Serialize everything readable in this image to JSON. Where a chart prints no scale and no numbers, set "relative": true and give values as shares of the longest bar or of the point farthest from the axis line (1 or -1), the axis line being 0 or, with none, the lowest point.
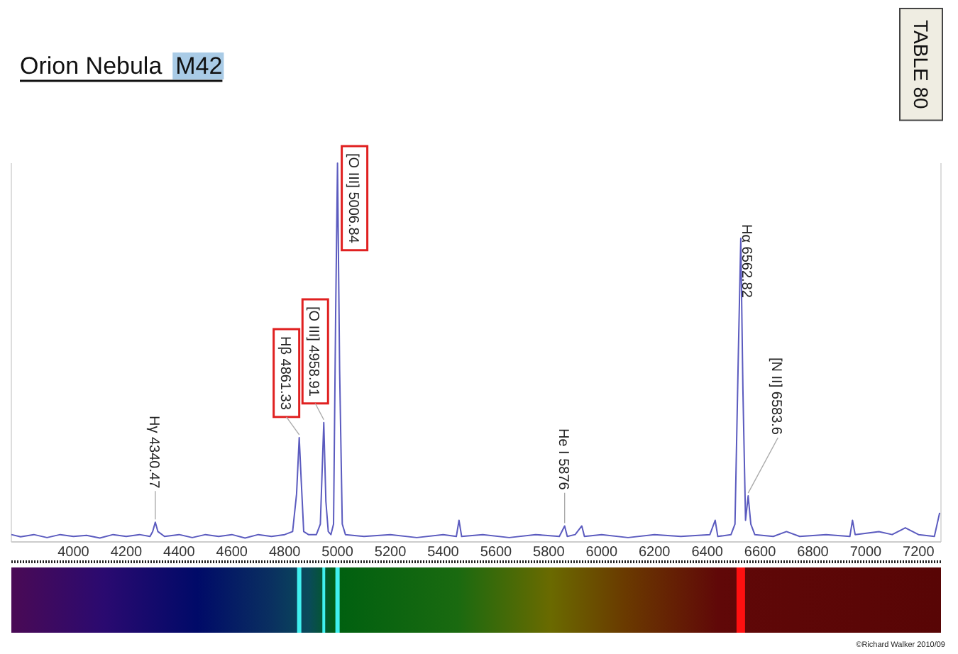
{
  "chart_data": {
    "type": "line",
    "title": "Orion Nebula  M42",
    "relative": true,
    "xlim": [
      3765,
      7285
    ],
    "xticks": [
      4000,
      4200,
      4400,
      4600,
      4800,
      5000,
      5200,
      5400,
      5600,
      5800,
      6000,
      6200,
      6400,
      6600,
      6800,
      7000,
      7200
    ],
    "marker": "none",
    "line_style": "solid",
    "series": [
      {
        "color": "#5b5bbf",
        "x": [
          3765,
          3800,
          3850,
          3900,
          3950,
          4000,
          4050,
          4100,
          4150,
          4200,
          4250,
          4290,
          4300,
          4310,
          4320,
          4345,
          4400,
          4450,
          4500,
          4550,
          4600,
          4650,
          4700,
          4750,
          4800,
          4830,
          4845,
          4855,
          4863,
          4872,
          4890,
          4920,
          4935,
          4948,
          4956,
          4965,
          4975,
          4985,
          4993,
          5000,
          5008,
          5018,
          5030,
          5100,
          5200,
          5300,
          5400,
          5450,
          5460,
          5470,
          5550,
          5650,
          5750,
          5840,
          5860,
          5870,
          5900,
          5925,
          5935,
          6000,
          6100,
          6200,
          6300,
          6410,
          6430,
          6440,
          6490,
          6505,
          6518,
          6527,
          6535,
          6545,
          6555,
          6565,
          6580,
          6650,
          6700,
          6750,
          6850,
          6940,
          6950,
          6960,
          7050,
          7100,
          7150,
          7200,
          7260,
          7280
        ],
        "values": [
          0.012,
          0.006,
          0.012,
          0.004,
          0.012,
          0.007,
          0.01,
          0.003,
          0.012,
          0.007,
          0.012,
          0.007,
          0.02,
          0.045,
          0.02,
          0.007,
          0.012,
          0.004,
          0.012,
          0.007,
          0.012,
          0.003,
          0.012,
          0.007,
          0.012,
          0.02,
          0.12,
          0.27,
          0.15,
          0.02,
          0.012,
          0.012,
          0.04,
          0.31,
          0.1,
          0.02,
          0.012,
          0.04,
          0.6,
          1.0,
          0.45,
          0.04,
          0.012,
          0.007,
          0.012,
          0.004,
          0.012,
          0.007,
          0.05,
          0.007,
          0.012,
          0.004,
          0.012,
          0.007,
          0.035,
          0.007,
          0.012,
          0.035,
          0.007,
          0.012,
          0.004,
          0.012,
          0.007,
          0.012,
          0.05,
          0.007,
          0.012,
          0.04,
          0.5,
          0.8,
          0.4,
          0.05,
          0.115,
          0.04,
          0.012,
          0.007,
          0.02,
          0.007,
          0.012,
          0.007,
          0.05,
          0.012,
          0.02,
          0.012,
          0.03,
          0.012,
          0.007,
          0.07
        ]
      }
    ],
    "annotations": [
      {
        "text": "Hγ 4340.47",
        "x": 4310,
        "y": 0.045
      },
      {
        "text": "Hβ 4861.33",
        "x": 4855,
        "y": 0.27
      },
      {
        "text": "[O III]  4958.91",
        "x": 4948,
        "y": 0.31
      },
      {
        "text": "[O III]  5006.84",
        "x": 5000,
        "y": 1.0
      },
      {
        "text": "He I 5876",
        "x": 5860,
        "y": 0.035
      },
      {
        "text": "Hα 6562.82",
        "x": 6527,
        "y": 0.8
      },
      {
        "text": "[N II]  6583.6",
        "x": 6555,
        "y": 0.115
      },
      "TABLE 80",
      "©Richard Walker 2010/09"
    ]
  }
}
